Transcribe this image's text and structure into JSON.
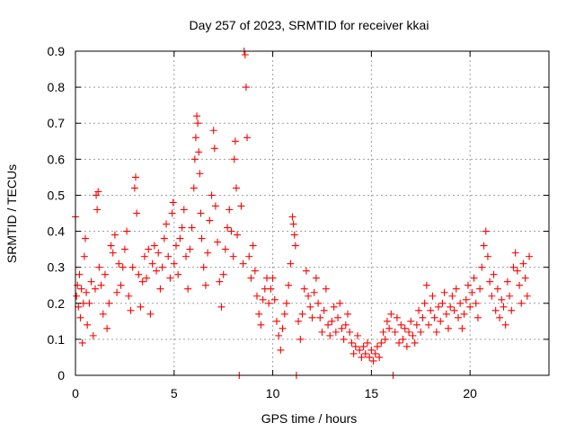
{
  "chart_data": {
    "type": "scatter",
    "title": "Day 257 of 2023, SRMTID for receiver kkai",
    "xlabel": "GPS time / hours",
    "ylabel": "SRMTID / TECUs",
    "xlim": [
      0,
      24
    ],
    "ylim": [
      0,
      0.9
    ],
    "x_ticks": [
      0,
      5,
      10,
      15,
      20
    ],
    "x_tick_labels": [
      "0",
      "5",
      "10",
      "15",
      "20"
    ],
    "y_ticks": [
      0,
      0.1,
      0.2,
      0.3,
      0.4,
      0.5,
      0.6,
      0.7,
      0.8,
      0.9
    ],
    "y_tick_labels": [
      "0",
      "0.1",
      "0.2",
      "0.3",
      "0.4",
      "0.5",
      "0.6",
      "0.7",
      "0.8",
      "0.9"
    ],
    "grid": true,
    "marker": "plus",
    "series": [
      {
        "name": "SRMTID",
        "color": "#ff0000",
        "points": [
          [
            0.0,
            0.44
          ],
          [
            0.05,
            0.22
          ],
          [
            0.1,
            0.25
          ],
          [
            0.15,
            0.19
          ],
          [
            0.2,
            0.28
          ],
          [
            0.25,
            0.16
          ],
          [
            0.3,
            0.24
          ],
          [
            0.35,
            0.09
          ],
          [
            0.4,
            0.2
          ],
          [
            0.45,
            0.33
          ],
          [
            0.5,
            0.38
          ],
          [
            0.55,
            0.23
          ],
          [
            0.6,
            0.14
          ],
          [
            0.7,
            0.2
          ],
          [
            0.8,
            0.26
          ],
          [
            0.9,
            0.11
          ],
          [
            1.0,
            0.24
          ],
          [
            1.05,
            0.5
          ],
          [
            1.1,
            0.46
          ],
          [
            1.15,
            0.51
          ],
          [
            1.2,
            0.3
          ],
          [
            1.3,
            0.25
          ],
          [
            1.4,
            0.17
          ],
          [
            1.5,
            0.28
          ],
          [
            1.6,
            0.13
          ],
          [
            1.7,
            0.2
          ],
          [
            1.8,
            0.36
          ],
          [
            1.9,
            0.34
          ],
          [
            2.0,
            0.39
          ],
          [
            2.1,
            0.23
          ],
          [
            2.2,
            0.31
          ],
          [
            2.3,
            0.25
          ],
          [
            2.4,
            0.3
          ],
          [
            2.5,
            0.35
          ],
          [
            2.6,
            0.4
          ],
          [
            2.7,
            0.22
          ],
          [
            2.8,
            0.18
          ],
          [
            2.9,
            0.3
          ],
          [
            3.0,
            0.52
          ],
          [
            3.05,
            0.55
          ],
          [
            3.1,
            0.45
          ],
          [
            3.2,
            0.28
          ],
          [
            3.3,
            0.19
          ],
          [
            3.4,
            0.26
          ],
          [
            3.5,
            0.33
          ],
          [
            3.6,
            0.27
          ],
          [
            3.7,
            0.35
          ],
          [
            3.8,
            0.17
          ],
          [
            3.9,
            0.31
          ],
          [
            4.0,
            0.36
          ],
          [
            4.1,
            0.29
          ],
          [
            4.2,
            0.34
          ],
          [
            4.3,
            0.24
          ],
          [
            4.4,
            0.3
          ],
          [
            4.5,
            0.38
          ],
          [
            4.6,
            0.42
          ],
          [
            4.7,
            0.33
          ],
          [
            4.8,
            0.27
          ],
          [
            4.9,
            0.45
          ],
          [
            4.95,
            0.48
          ],
          [
            5.0,
            0.31
          ],
          [
            5.1,
            0.36
          ],
          [
            5.2,
            0.28
          ],
          [
            5.3,
            0.38
          ],
          [
            5.4,
            0.41
          ],
          [
            5.5,
            0.46
          ],
          [
            5.6,
            0.33
          ],
          [
            5.7,
            0.24
          ],
          [
            5.8,
            0.35
          ],
          [
            5.9,
            0.41
          ],
          [
            6.0,
            0.52
          ],
          [
            6.05,
            0.6
          ],
          [
            6.1,
            0.66
          ],
          [
            6.15,
            0.72
          ],
          [
            6.2,
            0.7
          ],
          [
            6.25,
            0.62
          ],
          [
            6.3,
            0.56
          ],
          [
            6.35,
            0.45
          ],
          [
            6.4,
            0.38
          ],
          [
            6.5,
            0.3
          ],
          [
            6.6,
            0.25
          ],
          [
            6.7,
            0.34
          ],
          [
            6.8,
            0.43
          ],
          [
            6.9,
            0.5
          ],
          [
            7.0,
            0.68
          ],
          [
            7.05,
            0.63
          ],
          [
            7.1,
            0.47
          ],
          [
            7.2,
            0.37
          ],
          [
            7.3,
            0.26
          ],
          [
            7.4,
            0.19
          ],
          [
            7.5,
            0.28
          ],
          [
            7.6,
            0.35
          ],
          [
            7.7,
            0.41
          ],
          [
            7.8,
            0.46
          ],
          [
            7.9,
            0.4
          ],
          [
            8.0,
            0.33
          ],
          [
            8.05,
            0.6
          ],
          [
            8.1,
            0.65
          ],
          [
            8.15,
            0.52
          ],
          [
            8.2,
            0.39
          ],
          [
            8.3,
            0.0
          ],
          [
            8.4,
            0.47
          ],
          [
            8.5,
            0.31
          ],
          [
            8.55,
            0.9
          ],
          [
            8.6,
            0.89
          ],
          [
            8.65,
            0.8
          ],
          [
            8.7,
            0.66
          ],
          [
            8.8,
            0.33
          ],
          [
            8.9,
            0.27
          ],
          [
            9.0,
            0.36
          ],
          [
            9.1,
            0.29
          ],
          [
            9.2,
            0.22
          ],
          [
            9.3,
            0.17
          ],
          [
            9.4,
            0.14
          ],
          [
            9.5,
            0.21
          ],
          [
            9.6,
            0.24
          ],
          [
            9.7,
            0.27
          ],
          [
            9.8,
            0.2
          ],
          [
            9.9,
            0.24
          ],
          [
            10.0,
            0.27
          ],
          [
            10.1,
            0.21
          ],
          [
            10.2,
            0.15
          ],
          [
            10.3,
            0.11
          ],
          [
            10.4,
            0.07
          ],
          [
            10.5,
            0.13
          ],
          [
            10.6,
            0.17
          ],
          [
            10.7,
            0.2
          ],
          [
            10.8,
            0.25
          ],
          [
            10.9,
            0.31
          ],
          [
            11.0,
            0.44
          ],
          [
            11.05,
            0.42
          ],
          [
            11.1,
            0.39
          ],
          [
            11.15,
            0.36
          ],
          [
            11.2,
            0.0
          ],
          [
            11.3,
            0.15
          ],
          [
            11.4,
            0.1
          ],
          [
            11.5,
            0.17
          ],
          [
            11.6,
            0.24
          ],
          [
            11.7,
            0.29
          ],
          [
            11.8,
            0.22
          ],
          [
            11.9,
            0.19
          ],
          [
            12.0,
            0.16
          ],
          [
            12.1,
            0.23
          ],
          [
            12.2,
            0.27
          ],
          [
            12.3,
            0.2
          ],
          [
            12.4,
            0.16
          ],
          [
            12.5,
            0.12
          ],
          [
            12.6,
            0.18
          ],
          [
            12.7,
            0.24
          ],
          [
            12.8,
            0.14
          ],
          [
            12.9,
            0.11
          ],
          [
            13.0,
            0.15
          ],
          [
            13.1,
            0.19
          ],
          [
            13.2,
            0.12
          ],
          [
            13.3,
            0.16
          ],
          [
            13.4,
            0.2
          ],
          [
            13.5,
            0.13
          ],
          [
            13.6,
            0.1
          ],
          [
            13.7,
            0.14
          ],
          [
            13.8,
            0.17
          ],
          [
            13.9,
            0.12
          ],
          [
            14.0,
            0.09
          ],
          [
            14.1,
            0.06
          ],
          [
            14.2,
            0.08
          ],
          [
            14.3,
            0.11
          ],
          [
            14.4,
            0.07
          ],
          [
            14.5,
            0.05
          ],
          [
            14.6,
            0.08
          ],
          [
            14.7,
            0.06
          ],
          [
            14.8,
            0.09
          ],
          [
            14.9,
            0.05
          ],
          [
            15.0,
            0.07
          ],
          [
            15.1,
            0.04
          ],
          [
            15.2,
            0.06
          ],
          [
            15.3,
            0.08
          ],
          [
            15.4,
            0.05
          ],
          [
            15.5,
            0.09
          ],
          [
            15.6,
            0.12
          ],
          [
            15.7,
            0.1
          ],
          [
            15.8,
            0.15
          ],
          [
            15.9,
            0.13
          ],
          [
            16.0,
            0.17
          ],
          [
            16.1,
            0.0
          ],
          [
            16.2,
            0.12
          ],
          [
            16.3,
            0.16
          ],
          [
            16.4,
            0.09
          ],
          [
            16.5,
            0.14
          ],
          [
            16.6,
            0.1
          ],
          [
            16.7,
            0.13
          ],
          [
            16.8,
            0.08
          ],
          [
            16.9,
            0.12
          ],
          [
            17.0,
            0.15
          ],
          [
            17.1,
            0.11
          ],
          [
            17.2,
            0.09
          ],
          [
            17.3,
            0.14
          ],
          [
            17.4,
            0.18
          ],
          [
            17.5,
            0.12
          ],
          [
            17.6,
            0.16
          ],
          [
            17.7,
            0.2
          ],
          [
            17.8,
            0.25
          ],
          [
            17.9,
            0.14
          ],
          [
            18.0,
            0.18
          ],
          [
            18.1,
            0.22
          ],
          [
            18.2,
            0.16
          ],
          [
            18.3,
            0.12
          ],
          [
            18.4,
            0.19
          ],
          [
            18.5,
            0.15
          ],
          [
            18.6,
            0.2
          ],
          [
            18.7,
            0.23
          ],
          [
            18.8,
            0.17
          ],
          [
            18.9,
            0.13
          ],
          [
            19.0,
            0.19
          ],
          [
            19.1,
            0.22
          ],
          [
            19.2,
            0.18
          ],
          [
            19.3,
            0.24
          ],
          [
            19.4,
            0.16
          ],
          [
            19.5,
            0.2
          ],
          [
            19.6,
            0.13
          ],
          [
            19.7,
            0.17
          ],
          [
            19.8,
            0.21
          ],
          [
            19.9,
            0.25
          ],
          [
            20.0,
            0.19
          ],
          [
            20.1,
            0.23
          ],
          [
            20.2,
            0.27
          ],
          [
            20.3,
            0.2
          ],
          [
            20.4,
            0.16
          ],
          [
            20.5,
            0.24
          ],
          [
            20.6,
            0.3
          ],
          [
            20.7,
            0.36
          ],
          [
            20.8,
            0.4
          ],
          [
            20.9,
            0.33
          ],
          [
            21.0,
            0.26
          ],
          [
            21.1,
            0.22
          ],
          [
            21.2,
            0.28
          ],
          [
            21.3,
            0.18
          ],
          [
            21.4,
            0.24
          ],
          [
            21.5,
            0.16
          ],
          [
            21.6,
            0.21
          ],
          [
            21.7,
            0.19
          ],
          [
            21.8,
            0.14
          ],
          [
            21.9,
            0.26
          ],
          [
            22.0,
            0.22
          ],
          [
            22.1,
            0.18
          ],
          [
            22.2,
            0.3
          ],
          [
            22.3,
            0.34
          ],
          [
            22.4,
            0.29
          ],
          [
            22.5,
            0.25
          ],
          [
            22.6,
            0.2
          ],
          [
            22.7,
            0.31
          ],
          [
            22.8,
            0.27
          ],
          [
            22.9,
            0.22
          ],
          [
            23.0,
            0.33
          ]
        ]
      }
    ]
  }
}
